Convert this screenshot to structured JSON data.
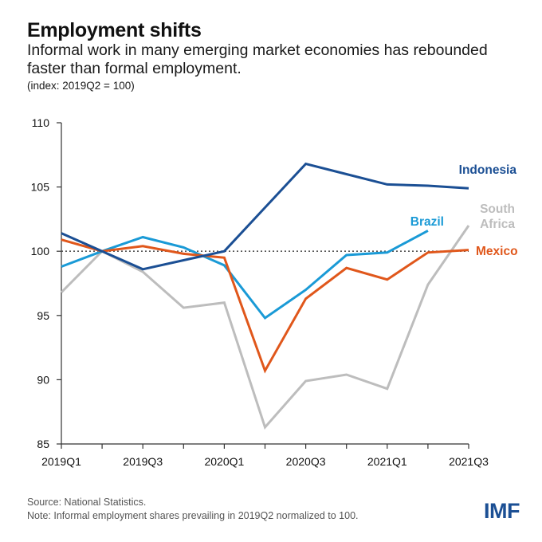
{
  "header": {
    "title": "Employment shifts",
    "subtitle": "Informal work in many emerging market economies has rebounded faster than formal employment.",
    "unit": "(index: 2019Q2 = 100)"
  },
  "footer": {
    "source": "Source: National Statistics.",
    "note": "Note: Informal employment shares prevailing in 2019Q2 normalized to 100.",
    "logo": "IMF"
  },
  "chart_data": {
    "type": "line",
    "title": "Employment shifts",
    "subtitle": "Informal work in many emerging market economies has rebounded faster than formal employment.",
    "ylabel": "index: 2019Q2 = 100",
    "xlabel": "",
    "x": [
      "2019Q1",
      "2019Q2",
      "2019Q3",
      "2019Q4",
      "2020Q1",
      "2020Q2",
      "2020Q3",
      "2020Q4",
      "2021Q1",
      "2021Q2",
      "2021Q3"
    ],
    "x_tick_labels": [
      "2019Q1",
      "2019Q3",
      "2020Q1",
      "2020Q3",
      "2021Q1",
      "2021Q3"
    ],
    "ylim": [
      85,
      110
    ],
    "y_ticks": [
      85,
      90,
      95,
      100,
      105,
      110
    ],
    "reference_line": {
      "value": 100,
      "style": "dotted"
    },
    "grid": false,
    "legend": "inline-labels-right",
    "series": [
      {
        "name": "Indonesia",
        "label": "Indonesia",
        "color": "#1b4f94",
        "values": [
          101.4,
          100.0,
          98.6,
          99.3,
          100.0,
          103.4,
          106.8,
          106.0,
          105.2,
          105.1,
          104.9
        ]
      },
      {
        "name": "Brazil",
        "label": "Brazil",
        "color": "#1a9ad6",
        "values": [
          98.8,
          100.0,
          101.1,
          100.3,
          98.9,
          94.8,
          97.0,
          99.7,
          99.9,
          101.6,
          null
        ]
      },
      {
        "name": "South Africa",
        "label": "South Africa",
        "label_lines": [
          "South",
          "Africa"
        ],
        "color": "#bdbdbd",
        "values": [
          96.8,
          100.0,
          98.4,
          95.6,
          96.0,
          86.3,
          89.9,
          90.4,
          89.3,
          97.4,
          102.0
        ]
      },
      {
        "name": "Mexico",
        "label": "Mexico",
        "color": "#e0571b",
        "values": [
          100.9,
          100.0,
          100.4,
          99.8,
          99.5,
          90.7,
          96.3,
          98.7,
          97.8,
          99.9,
          100.1
        ]
      }
    ]
  }
}
